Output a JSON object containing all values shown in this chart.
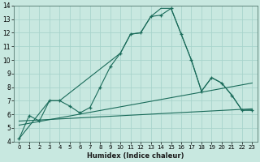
{
  "xlabel": "Humidex (Indice chaleur)",
  "background_color": "#c8e8e0",
  "grid_color": "#a8d4cc",
  "line_color": "#1a6b5a",
  "xlim": [
    -0.5,
    23.5
  ],
  "ylim": [
    4,
    14
  ],
  "yticks": [
    4,
    5,
    6,
    7,
    8,
    9,
    10,
    11,
    12,
    13,
    14
  ],
  "xticks": [
    0,
    1,
    2,
    3,
    4,
    5,
    6,
    7,
    8,
    9,
    10,
    11,
    12,
    13,
    14,
    15,
    16,
    17,
    18,
    19,
    20,
    21,
    22,
    23
  ],
  "line1_x": [
    0,
    1,
    2,
    3,
    4,
    5,
    6,
    7,
    8,
    9,
    10,
    11,
    12,
    13,
    14,
    15,
    16,
    17,
    18,
    19,
    20,
    21,
    22,
    23
  ],
  "line1_y": [
    4.2,
    5.9,
    5.5,
    7.0,
    7.0,
    6.6,
    6.1,
    6.5,
    8.0,
    9.5,
    10.5,
    11.9,
    12.0,
    13.2,
    13.3,
    13.8,
    11.9,
    10.0,
    7.7,
    8.7,
    8.3,
    7.4,
    6.3,
    6.3
  ],
  "line2_x": [
    0,
    3,
    4,
    10,
    11,
    12,
    13,
    14,
    15,
    16,
    17,
    18,
    19,
    20,
    21,
    22,
    23
  ],
  "line2_y": [
    4.2,
    7.0,
    7.0,
    10.5,
    11.9,
    12.0,
    13.2,
    13.8,
    13.8,
    11.9,
    10.0,
    7.7,
    8.7,
    8.3,
    7.4,
    6.3,
    6.3
  ],
  "line3_x": [
    0,
    23
  ],
  "line3_y": [
    5.2,
    8.3
  ],
  "line4_x": [
    0,
    23
  ],
  "line4_y": [
    5.5,
    6.4
  ]
}
